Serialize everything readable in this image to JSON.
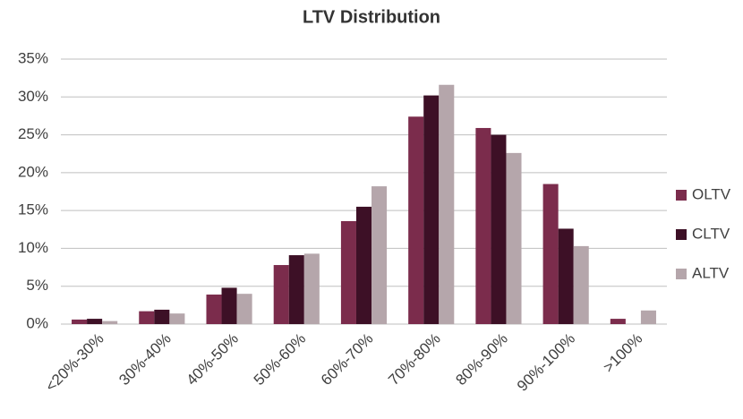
{
  "chart_data": {
    "type": "bar",
    "title": "LTV Distribution",
    "categories": [
      "<20%-30%",
      "30%-40%",
      "40%-50%",
      "50%-60%",
      "60%-70%",
      "70%-80%",
      "80%-90%",
      "90%-100%",
      ">100%"
    ],
    "series": [
      {
        "name": "OLTV",
        "color": "#7b2c4c",
        "values": [
          0.6,
          1.7,
          3.9,
          7.8,
          13.6,
          27.4,
          25.9,
          18.5,
          0.7
        ]
      },
      {
        "name": "CLTV",
        "color": "#3d1026",
        "values": [
          0.7,
          1.9,
          4.8,
          9.1,
          15.5,
          30.2,
          25.0,
          12.6,
          0
        ]
      },
      {
        "name": "ALTV",
        "color": "#b5a6ab",
        "values": [
          0.4,
          1.4,
          4.0,
          9.3,
          18.2,
          31.6,
          22.6,
          10.3,
          1.8
        ]
      }
    ],
    "ylim": [
      0,
      35
    ],
    "yticks": [
      {
        "value": 0,
        "label": "0%"
      },
      {
        "value": 5,
        "label": "5%"
      },
      {
        "value": 10,
        "label": "10%"
      },
      {
        "value": 15,
        "label": "15%"
      },
      {
        "value": 20,
        "label": "20%"
      },
      {
        "value": 25,
        "label": "25%"
      },
      {
        "value": 30,
        "label": "30%"
      },
      {
        "value": 35,
        "label": "35%"
      }
    ],
    "grid": true,
    "legend": "right"
  }
}
